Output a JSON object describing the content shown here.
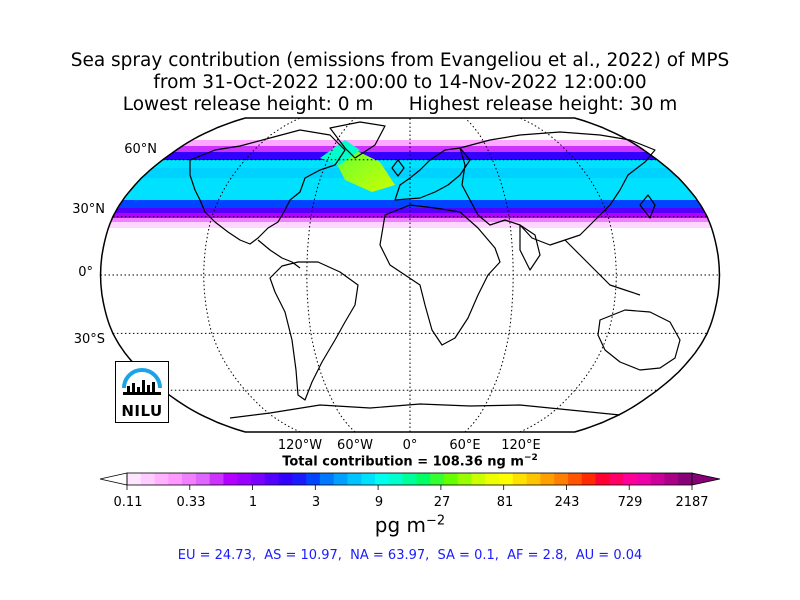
{
  "title": {
    "line1": "Sea spray contribution (emissions from Evangeliou et al., 2022) of MPS",
    "line2": "from 31-Oct-2022 12:00:00 to 14-Nov-2022 12:00:00",
    "line3": "Lowest release height: 0 m      Highest release height: 30 m"
  },
  "map": {
    "projection": "robinson",
    "lat_labels": [
      "60°N",
      "30°N",
      "0°",
      "30°S"
    ],
    "lon_labels": [
      "120°W",
      "60°W",
      "0°",
      "60°E",
      "120°E"
    ],
    "grid": true,
    "colors": {
      "land_border": "#000000",
      "grid": "#000000",
      "ocean": "#ffffff"
    }
  },
  "total_label": "Total contribution = 108.36 ng m",
  "total_sup": "−2",
  "colorbar": {
    "ticks": [
      "0.11",
      "0.33",
      "1",
      "3",
      "9",
      "27",
      "81",
      "243",
      "729",
      "2187"
    ],
    "units_text": "pg m",
    "units_sup": "−2",
    "colors": [
      "#ffe6ff",
      "#ffccff",
      "#ffb3ff",
      "#ff99ff",
      "#f080ff",
      "#e066ff",
      "#cc33ff",
      "#b300ff",
      "#9900ff",
      "#7a00ff",
      "#5500ff",
      "#3300ff",
      "#1a1aff",
      "#0044ff",
      "#0077ff",
      "#00a0ff",
      "#00c4ff",
      "#00e0ff",
      "#00ffee",
      "#00ffcc",
      "#00ff99",
      "#00ff66",
      "#33ff33",
      "#66ff00",
      "#99ff00",
      "#ccff00",
      "#eeff00",
      "#ffff00",
      "#ffe000",
      "#ffc400",
      "#ffa000",
      "#ff8000",
      "#ff5500",
      "#ff2a00",
      "#ff0033",
      "#ff0066",
      "#ff0099",
      "#ee00aa",
      "#cc0099",
      "#aa0088",
      "#880077"
    ]
  },
  "regions_text": "EU = 24.73,  AS = 10.97,  NA = 63.97,  SA = 0.1,  AF = 2.8,  AU = 0.04",
  "logo": {
    "text": "NILU",
    "accent": "#1aa3e8"
  }
}
